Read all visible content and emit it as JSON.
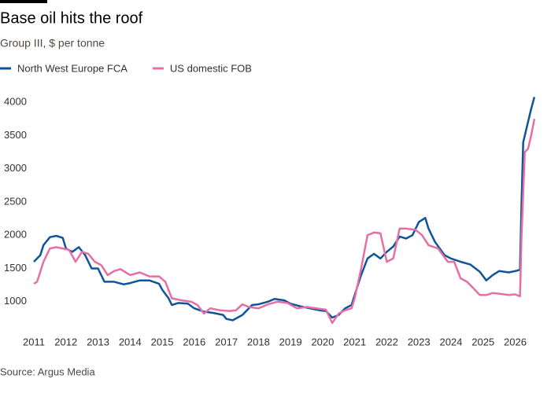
{
  "chart_data": {
    "type": "line",
    "title": "Base oil hits the roof",
    "subtitle": "Group III, $ per tonne",
    "source": "Source: Argus Media",
    "xlim": [
      2011,
      2026.7
    ],
    "xticks": [
      2011,
      2012,
      2013,
      2014,
      2015,
      2016,
      2017,
      2018,
      2019,
      2020,
      2021,
      2022,
      2023,
      2024,
      2025,
      2026
    ],
    "ylim": [
      630,
      4120
    ],
    "yticks": [
      1000,
      1500,
      2000,
      2500,
      3000,
      3500,
      4000
    ],
    "grid": false,
    "legend": "top-left",
    "series": [
      {
        "name": "North West Europe FCA",
        "color": "#0f5499",
        "x": [
          2011.0,
          2011.1,
          2011.2,
          2011.3,
          2011.5,
          2011.7,
          2011.9,
          2012.0,
          2012.2,
          2012.4,
          2012.6,
          2012.8,
          2013.0,
          2013.2,
          2013.5,
          2013.8,
          2014.0,
          2014.3,
          2014.6,
          2014.9,
          2015.0,
          2015.2,
          2015.3,
          2015.5,
          2015.8,
          2016.0,
          2016.3,
          2016.6,
          2016.9,
          2017.0,
          2017.2,
          2017.5,
          2017.8,
          2018.0,
          2018.3,
          2018.5,
          2018.8,
          2019.0,
          2019.3,
          2019.6,
          2019.9,
          2020.1,
          2020.3,
          2020.5,
          2020.7,
          2020.9,
          2021.0,
          2021.2,
          2021.4,
          2021.6,
          2021.8,
          2022.0,
          2022.2,
          2022.4,
          2022.6,
          2022.8,
          2023.0,
          2023.2,
          2023.3,
          2023.5,
          2023.8,
          2024.0,
          2024.3,
          2024.6,
          2024.9,
          2025.1,
          2025.3,
          2025.5,
          2025.8,
          2026.0,
          2026.15,
          2026.2,
          2026.25,
          2026.35,
          2026.5,
          2026.6
        ],
        "values": [
          1600,
          1650,
          1700,
          1850,
          1970,
          1990,
          1960,
          1800,
          1750,
          1820,
          1700,
          1500,
          1500,
          1300,
          1300,
          1260,
          1280,
          1320,
          1320,
          1270,
          1180,
          1050,
          950,
          980,
          970,
          900,
          850,
          830,
          800,
          740,
          720,
          800,
          950,
          960,
          1000,
          1040,
          1020,
          970,
          930,
          900,
          870,
          860,
          760,
          800,
          900,
          950,
          1100,
          1400,
          1650,
          1720,
          1650,
          1750,
          1830,
          1980,
          1950,
          2000,
          2200,
          2260,
          2100,
          1900,
          1700,
          1650,
          1600,
          1560,
          1450,
          1320,
          1400,
          1460,
          1440,
          1460,
          1480,
          2500,
          3400,
          3600,
          3900,
          4080
        ]
      },
      {
        "name": "US domestic FOB",
        "color": "#e56fa5",
        "x": [
          2011.0,
          2011.1,
          2011.2,
          2011.3,
          2011.5,
          2011.7,
          2011.9,
          2012.1,
          2012.3,
          2012.5,
          2012.7,
          2012.9,
          2013.1,
          2013.3,
          2013.5,
          2013.7,
          2014.0,
          2014.3,
          2014.6,
          2014.9,
          2015.1,
          2015.3,
          2015.6,
          2015.9,
          2016.1,
          2016.3,
          2016.5,
          2016.8,
          2017.1,
          2017.3,
          2017.5,
          2017.7,
          2018.0,
          2018.3,
          2018.6,
          2018.9,
          2019.2,
          2019.5,
          2019.8,
          2020.1,
          2020.3,
          2020.5,
          2020.7,
          2020.9,
          2021.0,
          2021.2,
          2021.4,
          2021.6,
          2021.8,
          2022.0,
          2022.2,
          2022.4,
          2022.6,
          2022.9,
          2023.1,
          2023.3,
          2023.6,
          2023.9,
          2024.1,
          2024.3,
          2024.5,
          2024.7,
          2024.9,
          2025.1,
          2025.3,
          2025.5,
          2025.8,
          2026.0,
          2026.15,
          2026.2,
          2026.3,
          2026.4,
          2026.5,
          2026.6
        ],
        "values": [
          1270,
          1300,
          1450,
          1600,
          1800,
          1820,
          1800,
          1780,
          1600,
          1750,
          1720,
          1600,
          1550,
          1400,
          1460,
          1490,
          1400,
          1440,
          1380,
          1380,
          1300,
          1050,
          1020,
          1000,
          950,
          820,
          900,
          870,
          860,
          870,
          960,
          920,
          900,
          960,
          1000,
          980,
          900,
          920,
          900,
          880,
          680,
          820,
          870,
          900,
          1050,
          1500,
          2000,
          2040,
          2030,
          1600,
          1650,
          2100,
          2100,
          2080,
          2000,
          1850,
          1800,
          1600,
          1600,
          1350,
          1300,
          1200,
          1100,
          1100,
          1130,
          1120,
          1100,
          1110,
          1080,
          2000,
          3250,
          3300,
          3500,
          3750
        ]
      }
    ]
  }
}
